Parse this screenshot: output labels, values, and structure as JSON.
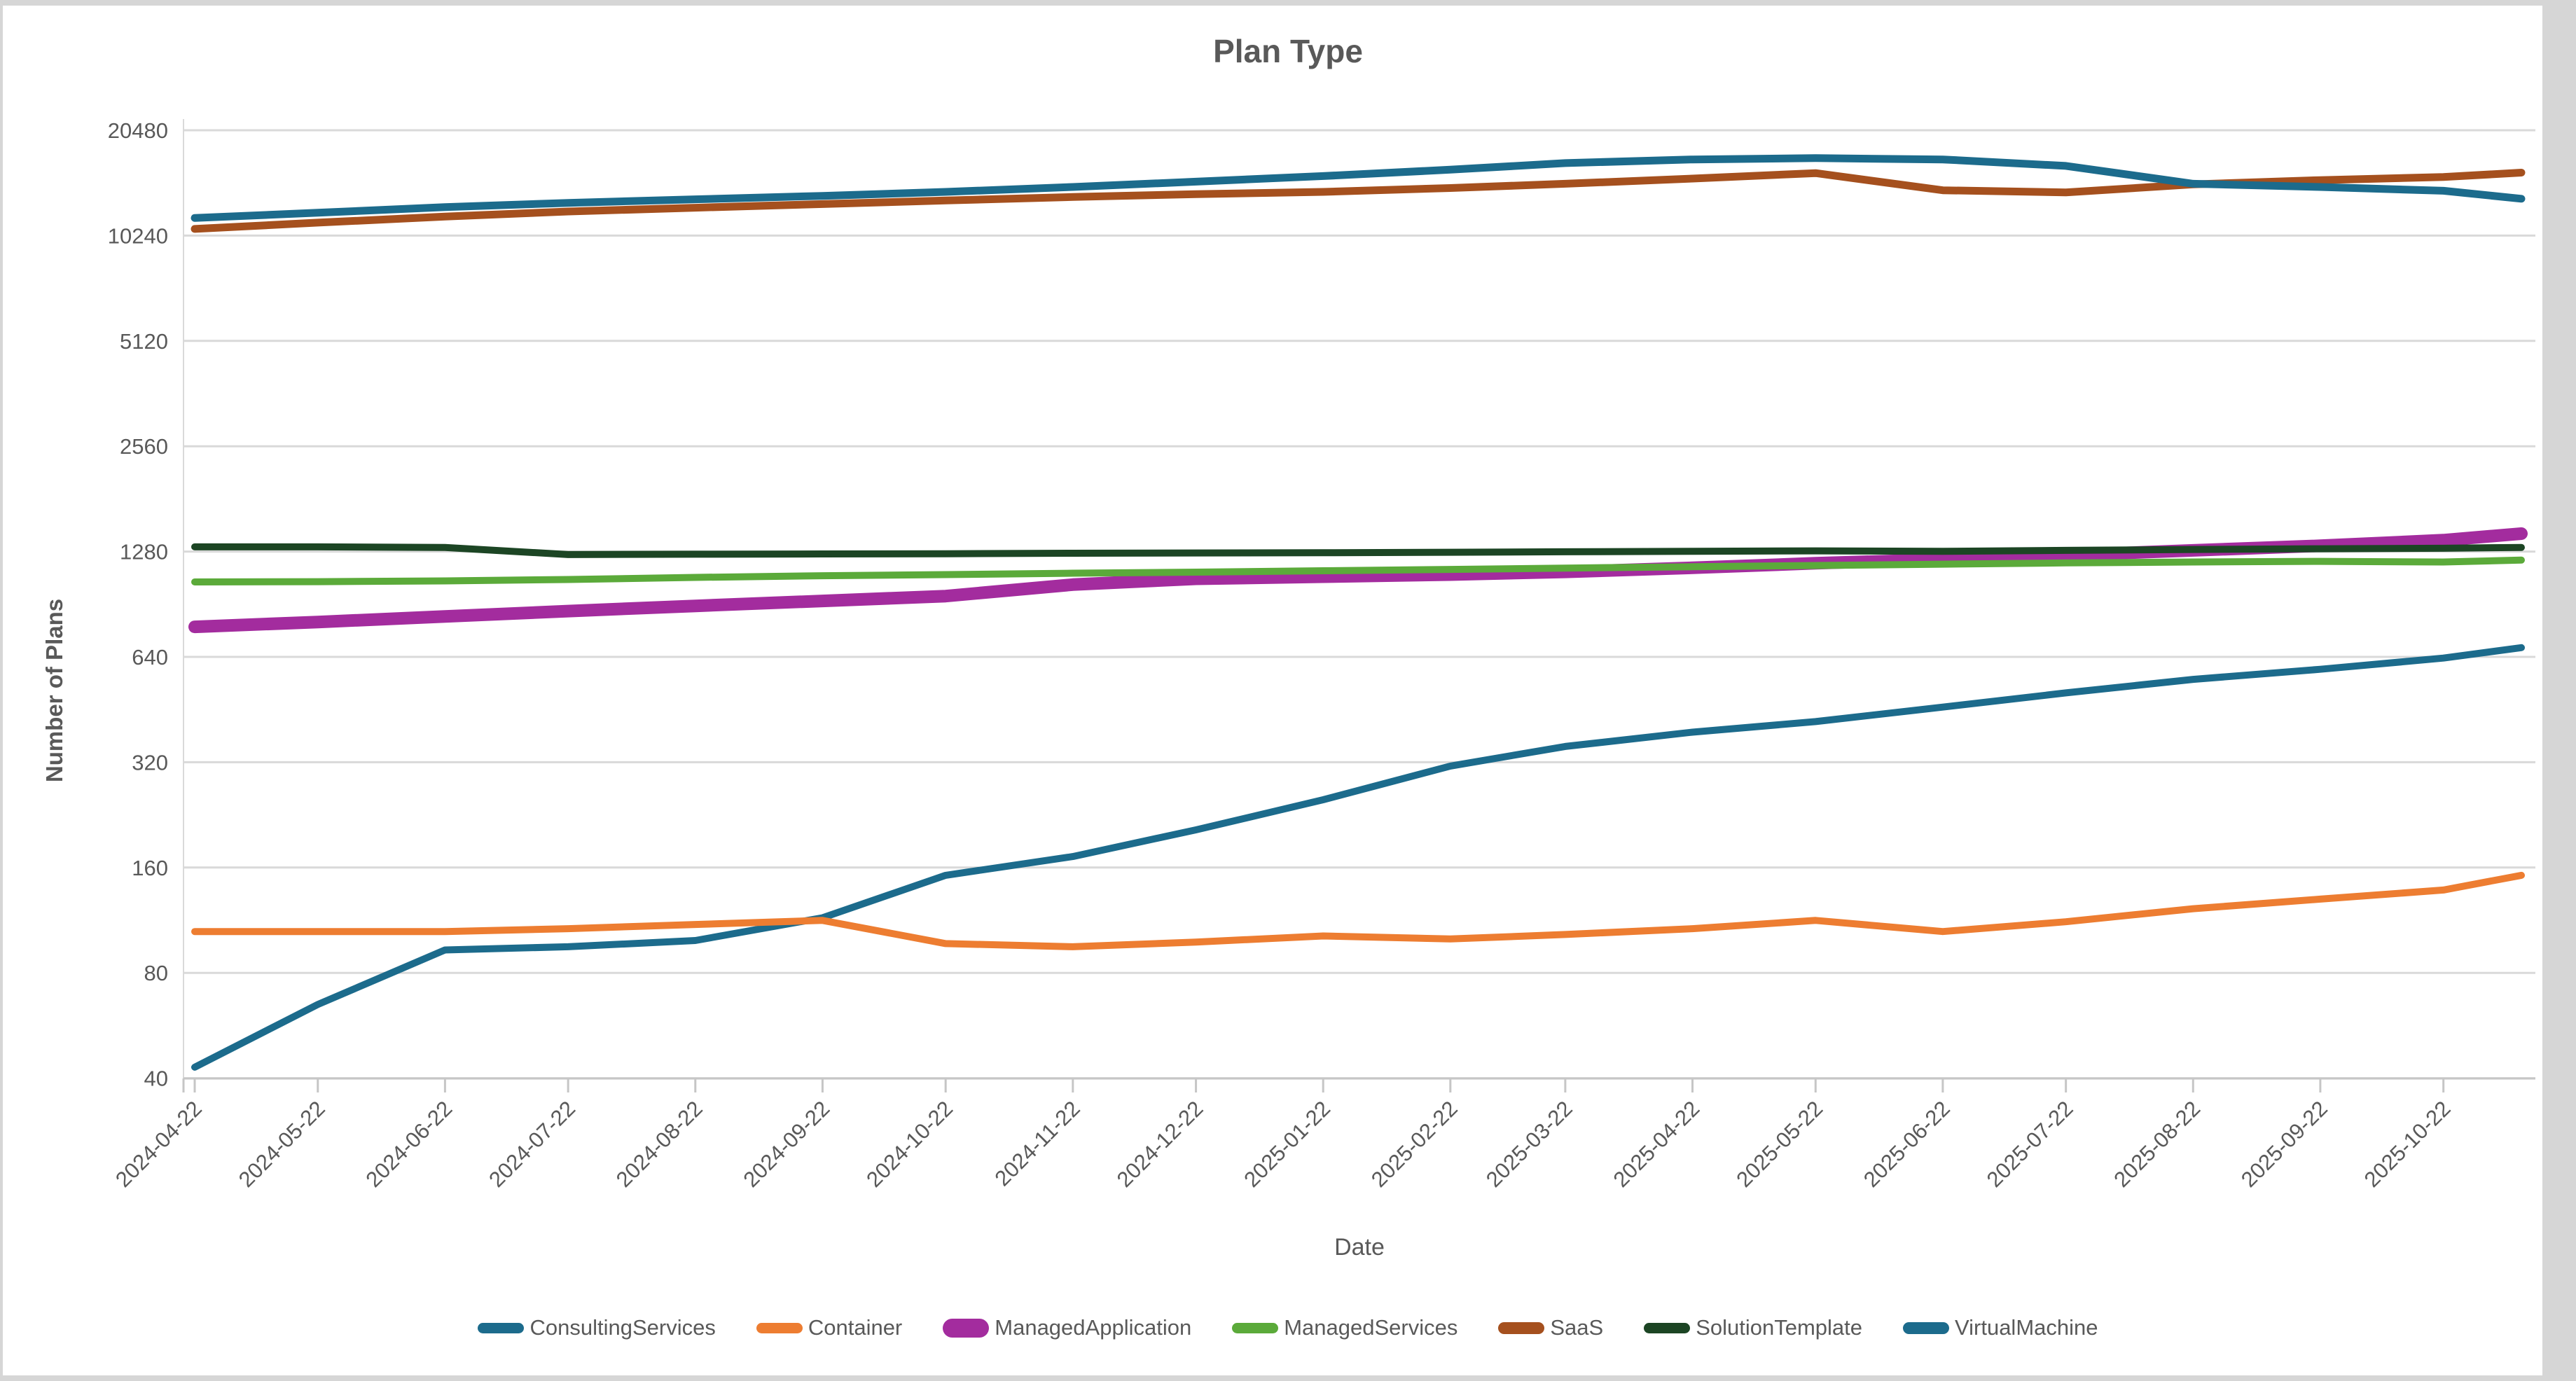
{
  "title": "Plan Type",
  "y_axis": {
    "label": "Number of Plans",
    "ticks": [
      40,
      80,
      160,
      320,
      640,
      1280,
      2560,
      5120,
      10240,
      20480
    ]
  },
  "x_axis": {
    "label": "Date",
    "ticks": [
      "2024-04-22",
      "2024-05-22",
      "2024-06-22",
      "2024-07-22",
      "2024-08-22",
      "2024-09-22",
      "2024-10-22",
      "2024-11-22",
      "2024-12-22",
      "2025-01-22",
      "2025-02-22",
      "2025-03-22",
      "2025-04-22",
      "2025-05-22",
      "2025-06-22",
      "2025-07-22",
      "2025-08-22",
      "2025-09-22",
      "2025-10-22"
    ]
  },
  "colors": {
    "grid": "#D9D9D9",
    "axis": "#C6C6C6",
    "text": "#595959",
    "title": "#595959",
    "background": "#FFFFFF"
  },
  "chart_data": {
    "type": "line",
    "title": "Plan Type",
    "xlabel": "Date",
    "ylabel": "Number of Plans",
    "y_scale": "log2",
    "ylim": [
      40,
      20480
    ],
    "grid": true,
    "legend_position": "bottom",
    "x": [
      "2024-04-22",
      "2024-05-22",
      "2024-06-22",
      "2024-07-22",
      "2024-08-22",
      "2024-09-22",
      "2024-10-22",
      "2024-11-22",
      "2024-12-22",
      "2025-01-22",
      "2025-02-22",
      "2025-03-22",
      "2025-04-22",
      "2025-05-22",
      "2025-06-22",
      "2025-07-22",
      "2025-08-22",
      "2025-09-22",
      "2025-10-22",
      "2025-11-10"
    ],
    "series": [
      {
        "name": "ConsultingServices",
        "color": "#1C6B8C",
        "width": 10,
        "values": [
          43,
          65,
          93,
          95,
          99,
          115,
          152,
          172,
          205,
          250,
          312,
          355,
          390,
          418,
          460,
          505,
          552,
          590,
          635,
          680
        ]
      },
      {
        "name": "Container",
        "color": "#ED7D31",
        "width": 10,
        "values": [
          105,
          105,
          105,
          107,
          110,
          113,
          97,
          95,
          98,
          102,
          100,
          103,
          107,
          113,
          105,
          112,
          122,
          130,
          138,
          152
        ]
      },
      {
        "name": "ManagedApplication",
        "color": "#A32C9E",
        "width": 18,
        "values": [
          780,
          805,
          835,
          865,
          895,
          925,
          955,
          1030,
          1070,
          1085,
          1100,
          1120,
          1150,
          1185,
          1215,
          1250,
          1290,
          1330,
          1380,
          1440
        ]
      },
      {
        "name": "ManagedServices",
        "color": "#5BAA3A",
        "width": 10,
        "values": [
          1048,
          1050,
          1055,
          1065,
          1080,
          1092,
          1100,
          1110,
          1118,
          1128,
          1138,
          1148,
          1158,
          1168,
          1178,
          1188,
          1195,
          1200,
          1195,
          1210
        ]
      },
      {
        "name": "SaaS",
        "color": "#A5501E",
        "width": 11,
        "values": [
          10700,
          11150,
          11600,
          12000,
          12300,
          12600,
          12900,
          13200,
          13450,
          13650,
          14000,
          14400,
          14900,
          15450,
          13800,
          13600,
          14350,
          14750,
          15050,
          15500
        ]
      },
      {
        "name": "SolutionTemplate",
        "color": "#1C4524",
        "width": 10,
        "values": [
          1320,
          1320,
          1315,
          1255,
          1258,
          1260,
          1262,
          1266,
          1268,
          1270,
          1274,
          1278,
          1282,
          1286,
          1282,
          1290,
          1298,
          1304,
          1308,
          1315
        ]
      },
      {
        "name": "VirtualMachine",
        "color": "#1C6B8C",
        "width": 11,
        "values": [
          11500,
          11900,
          12350,
          12700,
          13000,
          13300,
          13650,
          14100,
          14600,
          15150,
          15800,
          16500,
          16900,
          17050,
          16900,
          16200,
          14400,
          14100,
          13750,
          13050
        ]
      }
    ]
  }
}
